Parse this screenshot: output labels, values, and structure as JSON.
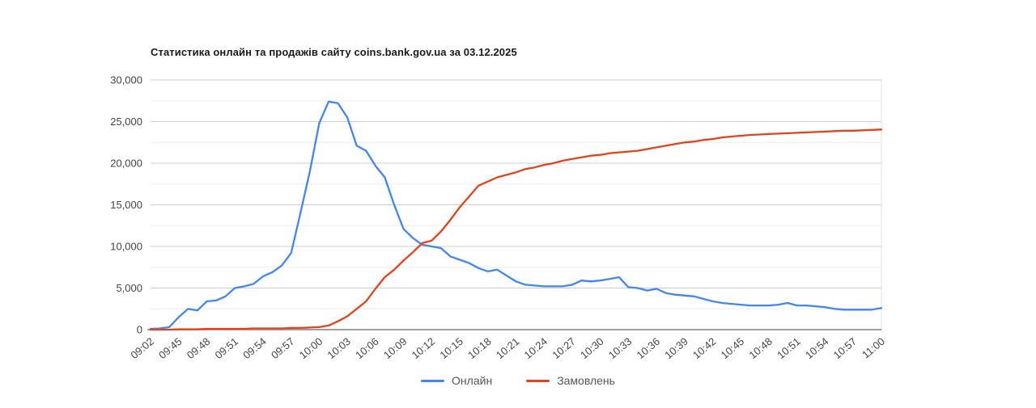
{
  "chart_data": {
    "type": "line",
    "title": "Статистика онлайн та продажів сайту coins.bank.gov.ua за 03.12.2025",
    "x_tick_labels": [
      "09:02",
      "09:45",
      "09:48",
      "09:51",
      "09:54",
      "09:57",
      "10:00",
      "10:03",
      "10:06",
      "10:09",
      "10:12",
      "10:15",
      "10:18",
      "10:21",
      "10:24",
      "10:27",
      "10:30",
      "10:33",
      "10:36",
      "10:39",
      "10:42",
      "10:45",
      "10:48",
      "10:51",
      "10:54",
      "10:57",
      "11:00"
    ],
    "points_per_tick": 3,
    "ylim": [
      0,
      30000
    ],
    "y_ticks": [
      0,
      5000,
      10000,
      15000,
      20000,
      25000,
      30000
    ],
    "y_tick_labels": [
      "0",
      "5,000",
      "10,000",
      "15,000",
      "20,000",
      "25,000",
      "30,000"
    ],
    "grid": {
      "major_color": "#cccccc",
      "minor_color": "#ededed",
      "baseline_color": "#9e9e9e",
      "edge_color": "#e0e0e0",
      "minor_step": 2500,
      "major_step": 5000
    },
    "legend_position": "bottom",
    "series": [
      {
        "name": "Онлайн",
        "color": "#4285f4",
        "values": [
          100,
          150,
          300,
          1500,
          2500,
          2300,
          3400,
          3500,
          4000,
          5000,
          5200,
          5500,
          6400,
          6900,
          7700,
          9200,
          14000,
          19000,
          24800,
          27400,
          27200,
          25500,
          22100,
          21500,
          19700,
          18300,
          15000,
          12100,
          11000,
          10200,
          10000,
          9800,
          8800,
          8400,
          8000,
          7400,
          7000,
          7200,
          6500,
          5800,
          5400,
          5300,
          5200,
          5200,
          5200,
          5400,
          5900,
          5800,
          5900,
          6100,
          6300,
          5100,
          5000,
          4700,
          4900,
          4400,
          4200,
          4100,
          4000,
          3700,
          3400,
          3200,
          3100,
          3000,
          2900,
          2900,
          2900,
          3000,
          3200,
          2900,
          2900,
          2800,
          2700,
          2500,
          2400,
          2400,
          2400,
          2400,
          2600
        ]
      },
      {
        "name": "Замовлень",
        "color": "#e2431e",
        "values": [
          0,
          0,
          0,
          50,
          50,
          50,
          100,
          100,
          100,
          100,
          100,
          150,
          150,
          150,
          150,
          200,
          200,
          250,
          300,
          500,
          1000,
          1600,
          2500,
          3400,
          4900,
          6300,
          7200,
          8300,
          9300,
          10400,
          10700,
          11800,
          13200,
          14700,
          16000,
          17300,
          17800,
          18300,
          18600,
          18900,
          19300,
          19500,
          19800,
          20000,
          20300,
          20500,
          20700,
          20900,
          21000,
          21200,
          21300,
          21400,
          21500,
          21700,
          21900,
          22100,
          22300,
          22500,
          22600,
          22800,
          22900,
          23100,
          23200,
          23300,
          23400,
          23450,
          23500,
          23550,
          23600,
          23650,
          23700,
          23750,
          23800,
          23850,
          23900,
          23900,
          23950,
          24000,
          24050
        ]
      }
    ]
  }
}
